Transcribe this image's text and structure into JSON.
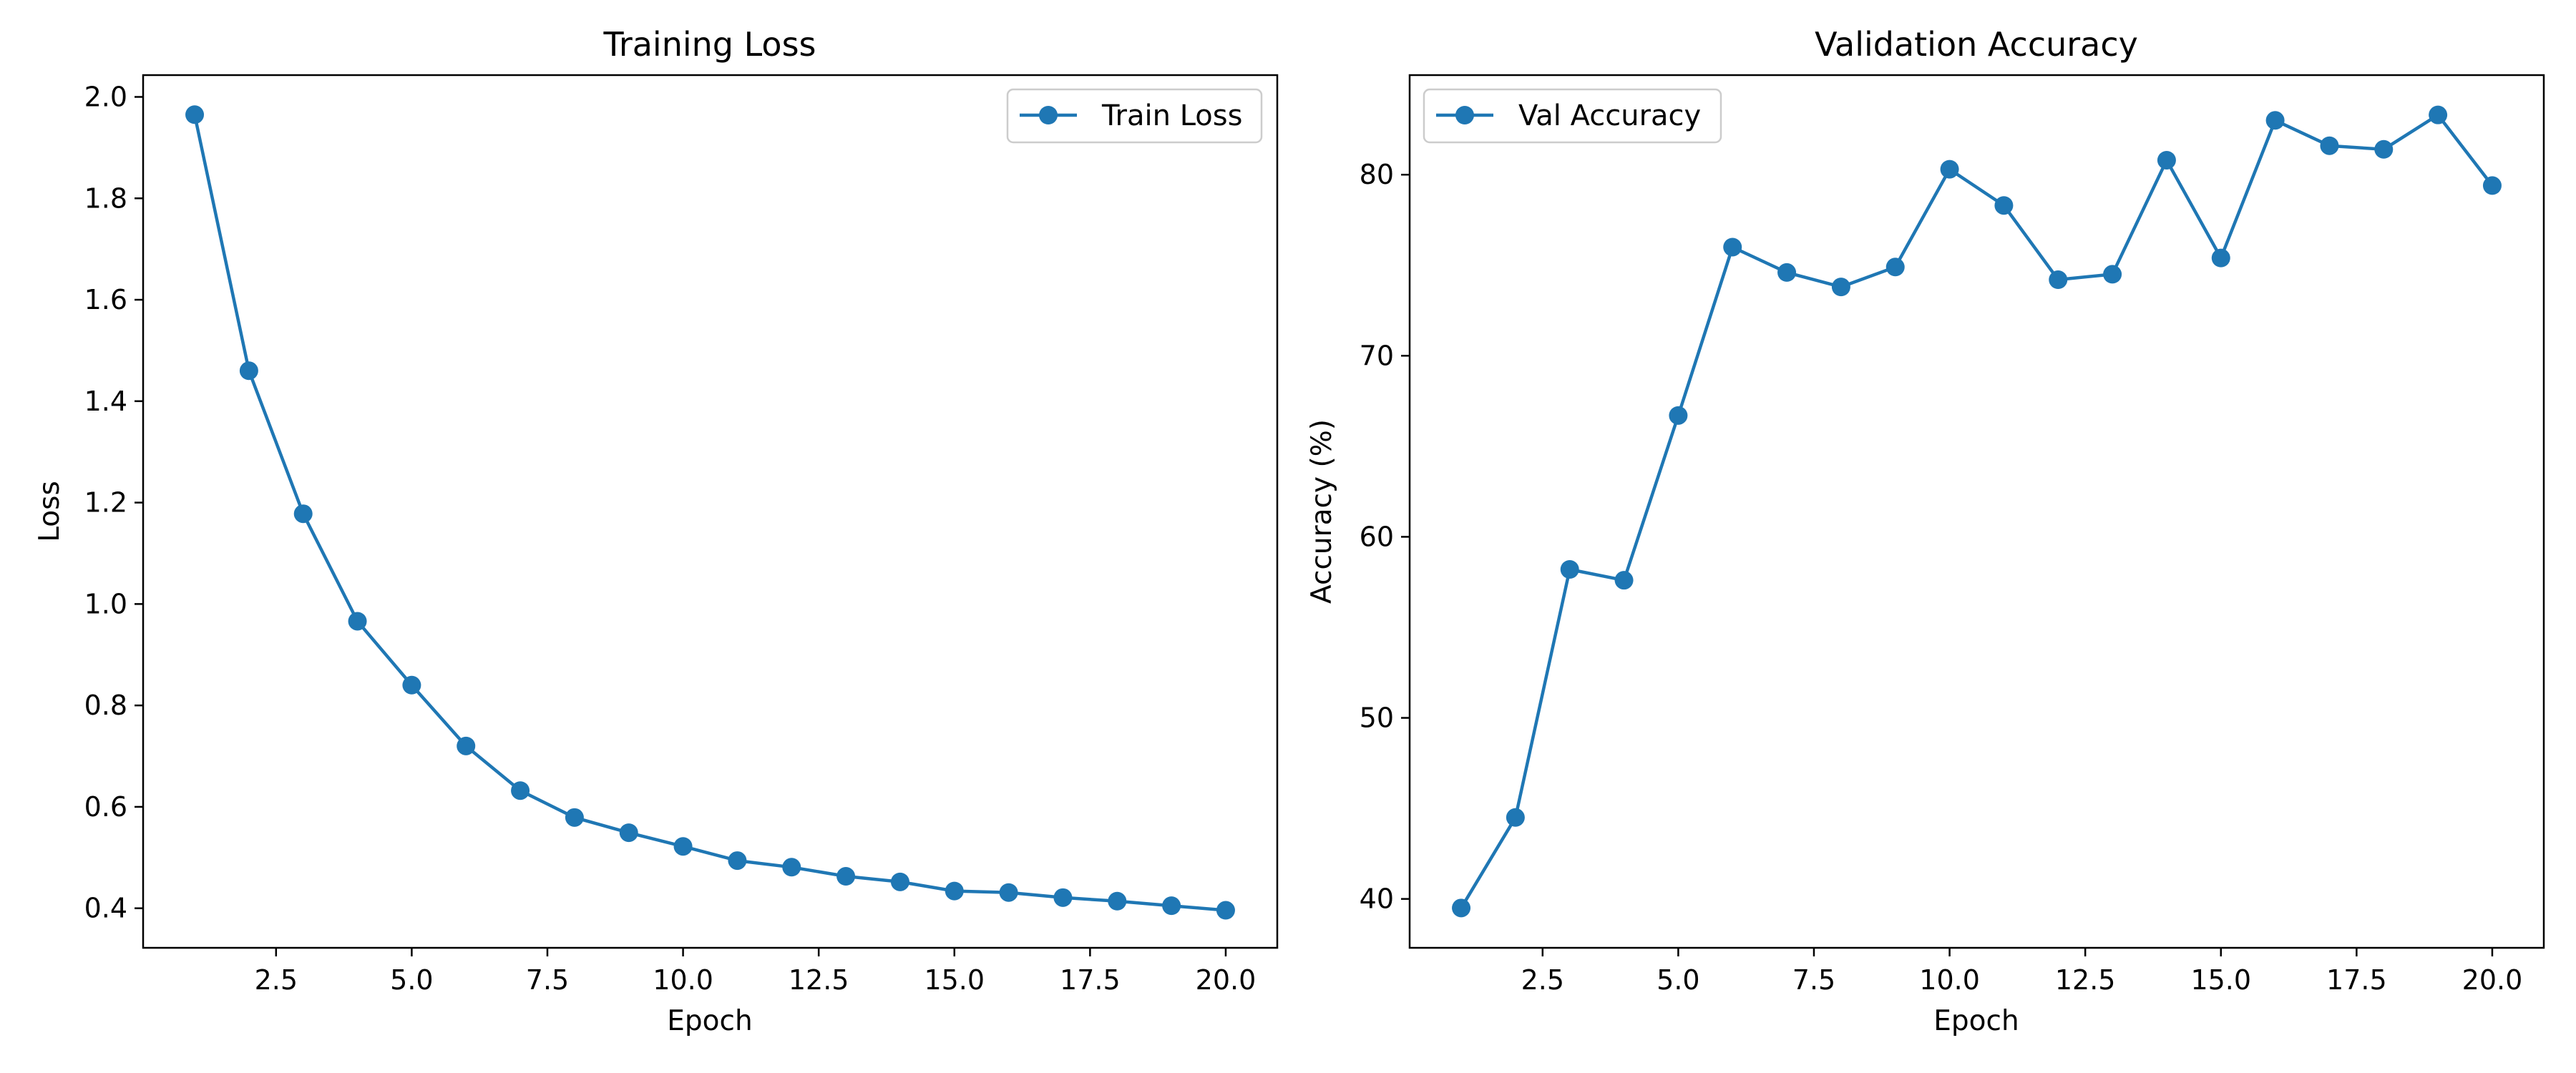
{
  "colors": {
    "series": "#1f77b4",
    "axis": "#000000",
    "background": "#ffffff",
    "legend_border": "#cccccc"
  },
  "chart_data": [
    {
      "type": "line",
      "title": "Training Loss",
      "xlabel": "Epoch",
      "ylabel": "Loss",
      "xlim": [
        0.05,
        20.95
      ],
      "ylim": [
        0.322,
        2.043
      ],
      "xticks": [
        2.5,
        5.0,
        7.5,
        10.0,
        12.5,
        15.0,
        17.5,
        20.0
      ],
      "yticks": [
        0.4,
        0.6,
        0.8,
        1.0,
        1.2,
        1.4,
        1.6,
        1.8,
        2.0
      ],
      "grid": false,
      "legend_position": "top-right",
      "x": [
        1,
        2,
        3,
        4,
        5,
        6,
        7,
        8,
        9,
        10,
        11,
        12,
        13,
        14,
        15,
        16,
        17,
        18,
        19,
        20
      ],
      "series": [
        {
          "name": "Train Loss",
          "marker": "circle",
          "values": [
            1.965,
            1.46,
            1.178,
            0.966,
            0.84,
            0.72,
            0.632,
            0.579,
            0.549,
            0.522,
            0.494,
            0.481,
            0.463,
            0.452,
            0.434,
            0.431,
            0.421,
            0.414,
            0.405,
            0.396
          ]
        }
      ]
    },
    {
      "type": "line",
      "title": "Validation Accuracy",
      "xlabel": "Epoch",
      "ylabel": "Accuracy (%)",
      "xlim": [
        0.05,
        20.95
      ],
      "ylim": [
        37.3,
        85.5
      ],
      "xticks": [
        2.5,
        5.0,
        7.5,
        10.0,
        12.5,
        15.0,
        17.5,
        20.0
      ],
      "yticks": [
        40,
        50,
        60,
        70,
        80
      ],
      "grid": false,
      "legend_position": "top-left",
      "x": [
        1,
        2,
        3,
        4,
        5,
        6,
        7,
        8,
        9,
        10,
        11,
        12,
        13,
        14,
        15,
        16,
        17,
        18,
        19,
        20
      ],
      "series": [
        {
          "name": "Val Accuracy",
          "marker": "circle",
          "values": [
            39.5,
            44.5,
            58.2,
            57.6,
            66.7,
            76.0,
            74.6,
            73.8,
            74.9,
            80.3,
            78.3,
            74.2,
            74.5,
            80.8,
            75.4,
            83.0,
            81.6,
            81.4,
            83.3,
            79.4
          ]
        }
      ]
    }
  ]
}
